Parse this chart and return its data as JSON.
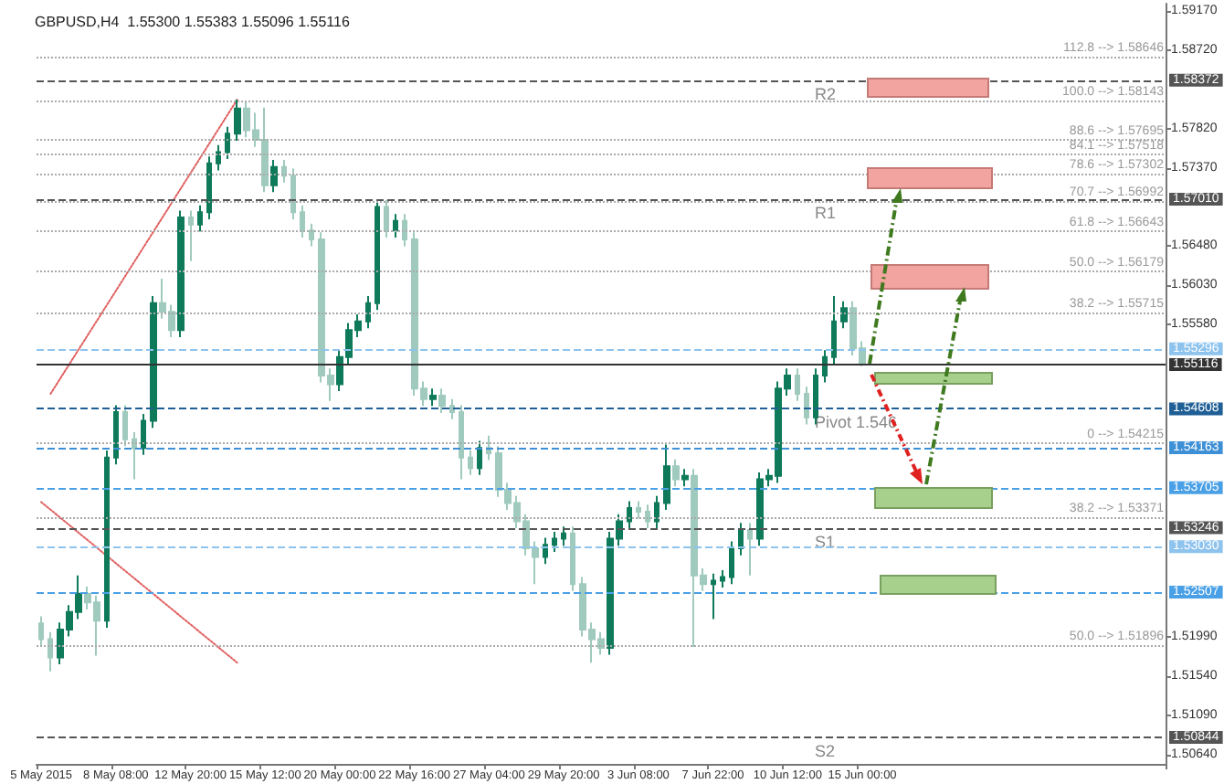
{
  "chart_data": {
    "type": "candlestick",
    "title": "GBPUSD,H4  1.55300 1.55383 1.55096 1.55116",
    "colors": [
      "#9fcabd",
      "#9fcabd",
      "#0e7a5a",
      "#0e7a5a",
      "#0e7a5a",
      "#9fcabd",
      "#9fcabd",
      "#0e7a5a",
      "#0e7a5a",
      "#9fcabd",
      "#9fcabd",
      "#0e7a5a",
      "#0e7a5a",
      "#9fcabd",
      "#9fcabd",
      "#0e7a5a",
      "#9fcabd",
      "#0e7a5a",
      "#0e7a5a",
      "#0e7a5a",
      "#0e7a5a",
      "#0e7a5a",
      "#9fcabd",
      "#9fcabd",
      "#9fcabd",
      "#0e7a5a",
      "#9fcabd",
      "#9fcabd",
      "#9fcabd",
      "#9fcabd",
      "#9fcabd",
      "#9fcabd",
      "#0e7a5a",
      "#0e7a5a",
      "#0e7a5a",
      "#0e7a5a",
      "#0e7a5a",
      "#9fcabd",
      "#0e7a5a",
      "#9fcabd",
      "#9fcabd",
      "#9fcabd",
      "#0e7a5a",
      "#9fcabd",
      "#9fcabd",
      "#9fcabd",
      "#9fcabd",
      "#0e7a5a",
      "#9fcabd",
      "#9fcabd",
      "#9fcabd",
      "#9fcabd",
      "#9fcabd",
      "#9fcabd",
      "#0e7a5a",
      "#0e7a5a",
      "#0e7a5a",
      "#9fcabd",
      "#9fcabd",
      "#9fcabd",
      "#9fcabd",
      "#0e7a5a",
      "#0e7a5a",
      "#0e7a5a",
      "#9fcabd",
      "#9fcabd",
      "#0e7a5a",
      "#0e7a5a",
      "#9fcabd",
      "#0e7a5a",
      "#9fcabd",
      "#9fcabd",
      "#0e7a5a",
      "#0e7a5a",
      "#0e7a5a",
      "#0e7a5a",
      "#9fcabd",
      "#0e7a5a",
      "#0e7a5a",
      "#0e7a5a",
      "#0e7a5a",
      "#9fcabd",
      "#9fcabd",
      "#0e7a5a",
      "#0e7a5a",
      "#0e7a5a",
      "#0e7a5a",
      "#9fcabd",
      "#9fcabd",
      null,
      null,
      null,
      null,
      null,
      null,
      null,
      null,
      null,
      null,
      null,
      null,
      null,
      null,
      null,
      null,
      null,
      null,
      null,
      null,
      null,
      null,
      null,
      null,
      null,
      null,
      null,
      null,
      null,
      null,
      null,
      null
    ],
    "categories": [
      "5 May 2015",
      null,
      null,
      null,
      null,
      null,
      null,
      null,
      "8 May 08:00",
      null,
      null,
      null,
      null,
      null,
      null,
      null,
      "12 May 20:00",
      null,
      null,
      null,
      null,
      null,
      null,
      null,
      "15 May 12:00",
      null,
      null,
      null,
      null,
      null,
      null,
      null,
      "20 May 00:00",
      null,
      null,
      null,
      null,
      null,
      null,
      null,
      "22 May 16:00",
      null,
      null,
      null,
      null,
      null,
      null,
      null,
      "27 May 04:00",
      null,
      null,
      null,
      null,
      null,
      null,
      null,
      "29 May 20:00",
      null,
      null,
      null,
      null,
      null,
      null,
      null,
      "3 Jun 08:00",
      null,
      null,
      null,
      null,
      null,
      null,
      null,
      "7 Jun 22:00",
      null,
      null,
      null,
      null,
      null,
      null,
      null,
      "10 Jun 12:00",
      null,
      null,
      null,
      null,
      null,
      null,
      null,
      "15 Jun 00:00",
      null,
      null,
      null,
      null,
      null,
      null,
      null,
      null,
      null,
      null,
      null,
      null,
      null,
      null,
      null,
      null,
      null,
      null,
      null,
      null,
      null,
      null,
      null,
      null,
      null,
      null,
      null,
      null,
      null,
      null,
      null,
      null
    ],
    "ohlc": [
      [
        1.5215,
        1.5223,
        1.5189,
        1.5197
      ],
      [
        1.5197,
        1.5205,
        1.516,
        1.5176
      ],
      [
        1.5176,
        1.5216,
        1.5168,
        1.5208
      ],
      [
        1.5208,
        1.5236,
        1.52,
        1.5228
      ],
      [
        1.5228,
        1.527,
        1.522,
        1.5249
      ],
      [
        1.5249,
        1.5257,
        1.5231,
        1.5239
      ],
      [
        1.5239,
        1.5247,
        1.5178,
        1.5218
      ],
      [
        1.5218,
        1.5413,
        1.521,
        1.5405
      ],
      [
        1.5405,
        1.5465,
        1.5397,
        1.5457
      ],
      [
        1.5457,
        1.5465,
        1.5418,
        1.5426
      ],
      [
        1.5426,
        1.5434,
        1.538,
        1.5416
      ],
      [
        1.5416,
        1.5455,
        1.5408,
        1.5447
      ],
      [
        1.5447,
        1.559,
        1.5439,
        1.5582
      ],
      [
        1.5582,
        1.561,
        1.5564,
        1.5572
      ],
      [
        1.5572,
        1.558,
        1.5543,
        1.5551
      ],
      [
        1.5551,
        1.5688,
        1.5543,
        1.568
      ],
      [
        1.568,
        1.5688,
        1.563,
        1.5672
      ],
      [
        1.5672,
        1.5694,
        1.5664,
        1.5686
      ],
      [
        1.5686,
        1.575,
        1.5678,
        1.5742
      ],
      [
        1.5742,
        1.5763,
        1.5734,
        1.5755
      ],
      [
        1.5755,
        1.5784,
        1.5747,
        1.5776
      ],
      [
        1.5776,
        1.5815,
        1.5768,
        1.5805
      ],
      [
        1.5805,
        1.5813,
        1.5772,
        1.578
      ],
      [
        1.578,
        1.58,
        1.5761,
        1.5769
      ],
      [
        1.5769,
        1.5806,
        1.5709,
        1.5717
      ],
      [
        1.5717,
        1.5746,
        1.5709,
        1.5738
      ],
      [
        1.5738,
        1.5746,
        1.572,
        1.5728
      ],
      [
        1.5728,
        1.5736,
        1.5678,
        1.5686
      ],
      [
        1.5686,
        1.5694,
        1.5657,
        1.5665
      ],
      [
        1.5665,
        1.5673,
        1.5647,
        1.5655
      ],
      [
        1.5655,
        1.5663,
        1.5491,
        1.5499
      ],
      [
        1.5499,
        1.5507,
        1.547,
        1.5489
      ],
      [
        1.5489,
        1.5528,
        1.5481,
        1.552
      ],
      [
        1.552,
        1.5559,
        1.5512,
        1.5551
      ],
      [
        1.5551,
        1.5569,
        1.5543,
        1.5561
      ],
      [
        1.5561,
        1.559,
        1.5553,
        1.5582
      ],
      [
        1.5582,
        1.57,
        1.5574,
        1.5692
      ],
      [
        1.5692,
        1.57,
        1.5657,
        1.5665
      ],
      [
        1.5665,
        1.5684,
        1.5657,
        1.5676
      ],
      [
        1.5676,
        1.5684,
        1.5647,
        1.5655
      ],
      [
        1.5655,
        1.5663,
        1.5476,
        1.5484
      ],
      [
        1.5484,
        1.5492,
        1.5464,
        1.5472
      ],
      [
        1.5472,
        1.5484,
        1.5464,
        1.5476
      ],
      [
        1.5476,
        1.5484,
        1.5456,
        1.5464
      ],
      [
        1.5464,
        1.5472,
        1.5449,
        1.5457
      ],
      [
        1.5457,
        1.5465,
        1.538,
        1.5405
      ],
      [
        1.5405,
        1.5413,
        1.5385,
        1.5393
      ],
      [
        1.5393,
        1.5424,
        1.5385,
        1.5416
      ],
      [
        1.5416,
        1.543,
        1.5402,
        1.541
      ],
      [
        1.541,
        1.5418,
        1.536,
        1.5368
      ],
      [
        1.5368,
        1.5376,
        1.5345,
        1.5353
      ],
      [
        1.5353,
        1.5361,
        1.5324,
        1.5332
      ],
      [
        1.5332,
        1.534,
        1.5293,
        1.5301
      ],
      [
        1.5301,
        1.5309,
        1.526,
        1.5291
      ],
      [
        1.5291,
        1.5313,
        1.5283,
        1.5305
      ],
      [
        1.5305,
        1.532,
        1.5297,
        1.5312
      ],
      [
        1.5312,
        1.5326,
        1.5304,
        1.5318
      ],
      [
        1.5318,
        1.5326,
        1.5252,
        1.526
      ],
      [
        1.526,
        1.5268,
        1.52,
        1.5208
      ],
      [
        1.5208,
        1.5216,
        1.517,
        1.5197
      ],
      [
        1.5197,
        1.5205,
        1.5179,
        1.5187
      ],
      [
        1.5187,
        1.532,
        1.5179,
        1.5312
      ],
      [
        1.5312,
        1.534,
        1.5304,
        1.5332
      ],
      [
        1.5332,
        1.5355,
        1.5324,
        1.5347
      ],
      [
        1.5347,
        1.5355,
        1.5335,
        1.5343
      ],
      [
        1.5343,
        1.5351,
        1.5324,
        1.5332
      ],
      [
        1.5332,
        1.5361,
        1.5324,
        1.5353
      ],
      [
        1.5353,
        1.542,
        1.5345,
        1.5395
      ],
      [
        1.5395,
        1.5403,
        1.5372,
        1.538
      ],
      [
        1.538,
        1.5392,
        1.5372,
        1.5384
      ],
      [
        1.5384,
        1.5392,
        1.5188,
        1.527
      ],
      [
        1.527,
        1.5278,
        1.5252,
        1.526
      ],
      [
        1.526,
        1.5272,
        1.522,
        1.5264
      ],
      [
        1.5264,
        1.5276,
        1.5256,
        1.5268
      ],
      [
        1.5268,
        1.5309,
        1.526,
        1.5301
      ],
      [
        1.5301,
        1.533,
        1.5293,
        1.5322
      ],
      [
        1.5322,
        1.533,
        1.527,
        1.5312
      ],
      [
        1.5312,
        1.5388,
        1.5304,
        1.538
      ],
      [
        1.538,
        1.5392,
        1.5372,
        1.5384
      ],
      [
        1.5384,
        1.5492,
        1.5376,
        1.5484
      ],
      [
        1.5484,
        1.5507,
        1.5476,
        1.5499
      ],
      [
        1.5499,
        1.5507,
        1.547,
        1.5478
      ],
      [
        1.5478,
        1.5486,
        1.5443,
        1.5451
      ],
      [
        1.5451,
        1.5507,
        1.5443,
        1.5499
      ],
      [
        1.5499,
        1.5528,
        1.5491,
        1.552
      ],
      [
        1.552,
        1.559,
        1.5512,
        1.5561
      ],
      [
        1.5561,
        1.5584,
        1.5553,
        1.5576
      ],
      [
        1.5576,
        1.5584,
        1.5522,
        1.553
      ],
      [
        1.553,
        1.55383,
        1.55096,
        1.55116
      ],
      null,
      null,
      null,
      null,
      null,
      null,
      null,
      null,
      null,
      null,
      null,
      null,
      null,
      null,
      null,
      null,
      null,
      null,
      null,
      null,
      null,
      null,
      null,
      null,
      null,
      null,
      null,
      null,
      null,
      null,
      null,
      null
    ],
    "series": [
      {
        "type": "line",
        "values": [
          null,
          1.5478,
          null,
          null,
          null,
          null,
          null,
          null,
          null,
          null,
          null,
          null,
          null,
          null,
          null,
          null,
          null,
          null,
          null,
          null,
          null,
          1.5815,
          null,
          null,
          null,
          null,
          null,
          null,
          null,
          null,
          null,
          null,
          null,
          null,
          null,
          null,
          null,
          null,
          null,
          null,
          null,
          null,
          null,
          null,
          null,
          null,
          null,
          null,
          null,
          null,
          null,
          null,
          null,
          null,
          null,
          null,
          null,
          null,
          null,
          null,
          null,
          null,
          null,
          null,
          null,
          null,
          null,
          null,
          null,
          null,
          null,
          null,
          null,
          null,
          null,
          null,
          null,
          null,
          null,
          null,
          null,
          null,
          null,
          null,
          null,
          null,
          null,
          null,
          null,
          null,
          null,
          null,
          null,
          null,
          null,
          null,
          null,
          null,
          null,
          null,
          null,
          null,
          null,
          null,
          null,
          null,
          null,
          null,
          null,
          null,
          null,
          null,
          null,
          null,
          null,
          null,
          null,
          null,
          null,
          null,
          null
        ],
        "color": "#e06060",
        "line_style": "dotted",
        "marker": "none"
      },
      {
        "type": "line",
        "values": [
          1.5354,
          null,
          null,
          null,
          null,
          null,
          null,
          null,
          null,
          null,
          null,
          null,
          null,
          null,
          null,
          null,
          null,
          null,
          null,
          null,
          null,
          1.517,
          null,
          null,
          null,
          null,
          null,
          null,
          null,
          null,
          null,
          null,
          null,
          null,
          null,
          null,
          null,
          null,
          null,
          null,
          null,
          null,
          null,
          null,
          null,
          null,
          null,
          null,
          null,
          null,
          null,
          null,
          null,
          null,
          null,
          null,
          null,
          null,
          null,
          null,
          null,
          null,
          null,
          null,
          null,
          null,
          null,
          null,
          null,
          null,
          null,
          null,
          null,
          null,
          null,
          null,
          null,
          null,
          null,
          null,
          null,
          null,
          null,
          null,
          null,
          null,
          null,
          null,
          null,
          null,
          null,
          null,
          null,
          null,
          null,
          null,
          null,
          null,
          null,
          null,
          null,
          null,
          null,
          null,
          null,
          null,
          null,
          null,
          null,
          null,
          null,
          null,
          null,
          null,
          null,
          null,
          null,
          null,
          null,
          null,
          null
        ],
        "color": "#e06060",
        "line_style": "dotted",
        "marker": "none"
      }
    ],
    "ylim": [
      1.5054,
      1.5925
    ],
    "yticks": [
      {
        "value": 1.5917,
        "label": "1.59170"
      },
      {
        "value": 1.5872,
        "label": "1.58720"
      },
      {
        "value": 1.5782,
        "label": "1.57820"
      },
      {
        "value": 1.5737,
        "label": "1.57370"
      },
      {
        "value": 1.5648,
        "label": "1.56480"
      },
      {
        "value": 1.5603,
        "label": "1.56030"
      },
      {
        "value": 1.5558,
        "label": "1.55580"
      },
      {
        "value": 1.5199,
        "label": "1.51990"
      },
      {
        "value": 1.5154,
        "label": "1.51540"
      },
      {
        "value": 1.5109,
        "label": "1.51090"
      },
      {
        "value": 1.5064,
        "label": "1.50640"
      }
    ],
    "ref_lines": [
      {
        "axis": "y",
        "value": 1.58372,
        "label": "1.58372",
        "color": "#555555",
        "line_style": "dashed"
      },
      {
        "axis": "y",
        "value": 1.5701,
        "label": "1.57010",
        "color": "#555555",
        "line_style": "dashed"
      },
      {
        "axis": "y",
        "value": 1.55296,
        "label": "1.55296",
        "color": "#8ec3ee",
        "line_style": "dashed"
      },
      {
        "axis": "y",
        "value": 1.55116,
        "label": "1.55116",
        "color": "#333333",
        "line_style": "solid"
      },
      {
        "axis": "y",
        "value": 1.54608,
        "label": "1.54608",
        "color": "#1f5f96",
        "line_style": "dashed"
      },
      {
        "axis": "y",
        "value": 1.54163,
        "label": "1.54163",
        "color": "#3d8fd6",
        "line_style": "dashed"
      },
      {
        "axis": "y",
        "value": 1.53705,
        "label": "1.53705",
        "color": "#4aa0e6",
        "line_style": "dashed"
      },
      {
        "axis": "y",
        "value": 1.53246,
        "label": "1.53246",
        "color": "#555555",
        "line_style": "dashed"
      },
      {
        "axis": "y",
        "value": 1.5303,
        "label": "1.53030",
        "color": "#8ec3ee",
        "line_style": "dashed"
      },
      {
        "axis": "y",
        "value": 1.52507,
        "label": "1.52507",
        "color": "#4aa0e6",
        "line_style": "dashed"
      },
      {
        "axis": "y",
        "value": 1.50844,
        "label": "1.50844",
        "color": "#555555",
        "line_style": "dashed"
      },
      {
        "axis": "y",
        "value": 1.58646,
        "label": "112.8 --> 1.58646",
        "color": "#aaaaaa",
        "line_style": "dotted"
      },
      {
        "axis": "y",
        "value": 1.58143,
        "label": "100.0 --> 1.58143",
        "color": "#aaaaaa",
        "line_style": "dotted"
      },
      {
        "axis": "y",
        "value": 1.57695,
        "label": "88.6 --> 1.57695",
        "color": "#aaaaaa",
        "line_style": "dotted"
      },
      {
        "axis": "y",
        "value": 1.57518,
        "label": "84.1 --> 1.57518",
        "color": "#aaaaaa",
        "line_style": "dotted"
      },
      {
        "axis": "y",
        "value": 1.57302,
        "label": "78.6 --> 1.57302",
        "color": "#aaaaaa",
        "line_style": "dotted"
      },
      {
        "axis": "y",
        "value": 1.56992,
        "label": "70.7 --> 1.56992",
        "color": "#aaaaaa",
        "line_style": "dotted"
      },
      {
        "axis": "y",
        "value": 1.56643,
        "label": "61.8 --> 1.56643",
        "color": "#aaaaaa",
        "line_style": "dotted"
      },
      {
        "axis": "y",
        "value": 1.56179,
        "label": "50.0 --> 1.56179",
        "color": "#aaaaaa",
        "line_style": "dotted"
      },
      {
        "axis": "y",
        "value": 1.55715,
        "label": "38.2 --> 1.55715",
        "color": "#aaaaaa",
        "line_style": "dotted"
      },
      {
        "axis": "y",
        "value": 1.53371,
        "label": "38.2 --> 1.53371",
        "color": "#aaaaaa",
        "line_style": "dotted"
      },
      {
        "axis": "y",
        "value": 1.51896,
        "label": "50.0 --> 1.51896",
        "color": "#aaaaaa",
        "line_style": "dotted"
      },
      {
        "axis": "y",
        "value": 1.54215,
        "label": "0 --> 1.54215",
        "color": "#aaaaaa",
        "line_style": "dotted"
      }
    ],
    "annotations": [
      {
        "text": "R2",
        "y": 1.58372
      },
      {
        "text": "R1",
        "y": 1.5701
      },
      {
        "text": "Pivot 1.546",
        "y": 1.54608
      },
      {
        "text": "S1",
        "y": 1.53246
      },
      {
        "text": "S2",
        "y": 1.50844
      }
    ]
  }
}
